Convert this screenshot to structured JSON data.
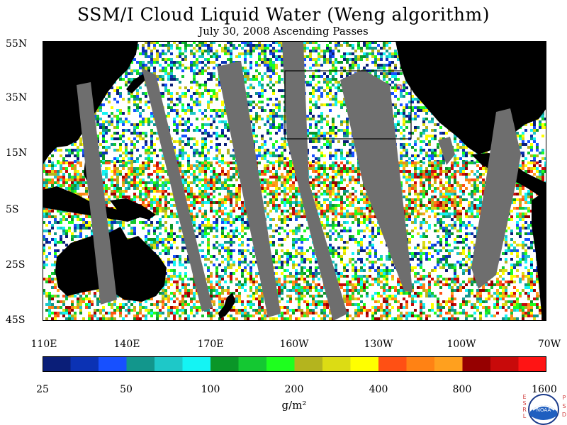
{
  "header": {
    "title": "SSM/I Cloud Liquid Water (Weng algorithm)",
    "subtitle": "July 30, 2008  Ascending Passes"
  },
  "axes": {
    "lat_ticks": [
      "55N",
      "35N",
      "15N",
      "5S",
      "25S",
      "45S"
    ],
    "lon_ticks": [
      "110E",
      "140E",
      "170E",
      "160W",
      "130W",
      "100W",
      "70W"
    ]
  },
  "colorbar": {
    "labels": [
      "25",
      "50",
      "100",
      "200",
      "400",
      "800",
      "1600"
    ],
    "units": "g/m²",
    "colors": [
      "#0a1e78",
      "#0b32b4",
      "#1750ff",
      "#12968c",
      "#1ec8c8",
      "#14f4f4",
      "#0a9628",
      "#14c832",
      "#1eff1e",
      "#b4b41e",
      "#dcdc14",
      "#ffff00",
      "#ff5014",
      "#ff8214",
      "#ffa01e",
      "#960000",
      "#c80a0a",
      "#ff1414"
    ]
  },
  "legend": {
    "esrl": "ESRL",
    "psd": "PSD",
    "logo_text": "NOAA"
  },
  "map": {
    "land_color": "#000000",
    "no_data_color": "#6e6e6e",
    "clear_color": "#ffffff"
  }
}
